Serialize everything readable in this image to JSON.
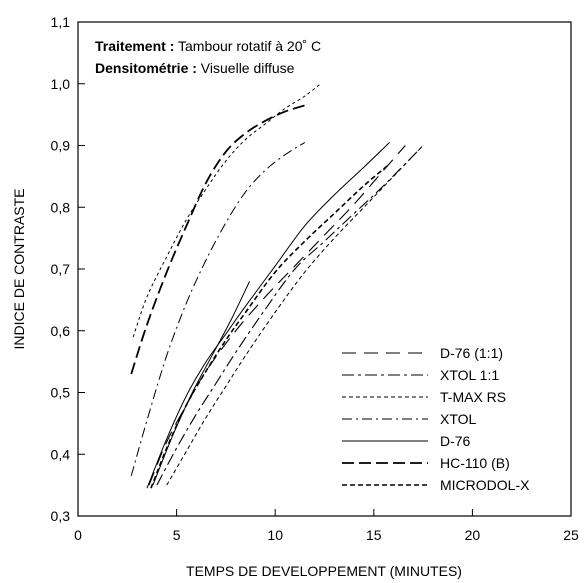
{
  "chart_data": {
    "type": "line",
    "xlabel": "TEMPS DE DEVELOPPEMENT (MINUTES)",
    "ylabel": "INDICE DE CONTRASTE",
    "xlim": [
      0,
      25
    ],
    "ylim": [
      0.3,
      1.1
    ],
    "xticks": [
      0,
      5,
      10,
      15,
      20,
      25
    ],
    "xtick_labels": [
      "0",
      "5",
      "10",
      "15",
      "20",
      "25"
    ],
    "yticks": [
      0.3,
      0.4,
      0.5,
      0.6,
      0.7,
      0.8,
      0.9,
      1.0,
      1.1
    ],
    "ytick_labels": [
      "0,3",
      "0,4",
      "0,5",
      "0,6",
      "0,7",
      "0,8",
      "0,9",
      "1,0",
      "1,1"
    ],
    "grid": false,
    "legend_position": "bottom-right",
    "annotations": [
      {
        "bold": "Traitement :",
        "text": " Tambour rotatif à 20˚ C"
      },
      {
        "bold": "Densitométrie :",
        "text": " Visuelle diffuse"
      }
    ],
    "series": [
      {
        "name": "D-76 (1:1)",
        "dash": "14,8",
        "width": 1.1,
        "x": [
          3.6,
          4.5,
          5.5,
          6.5,
          8.0,
          9.5,
          11.0,
          12.5,
          14.0,
          15.5,
          16.6
        ],
        "y": [
          0.35,
          0.42,
          0.48,
          0.535,
          0.6,
          0.655,
          0.705,
          0.755,
          0.805,
          0.86,
          0.9
        ]
      },
      {
        "name": "XTOL 1:1",
        "dash": "12,4,3,4",
        "width": 1.1,
        "x": [
          4.0,
          5.0,
          6.0,
          7.0,
          8.0,
          9.5,
          11.0,
          12.5,
          14.0,
          15.5,
          17.5
        ],
        "y": [
          0.35,
          0.41,
          0.465,
          0.515,
          0.565,
          0.635,
          0.7,
          0.745,
          0.79,
          0.835,
          0.9
        ]
      },
      {
        "name": "T-MAX RS",
        "dash": "4,3",
        "width": 1.0,
        "x": [
          4.5,
          5.5,
          6.5,
          7.5,
          8.5,
          10.0,
          11.5,
          13.0,
          14.5,
          16.0,
          17.5
        ],
        "y": [
          0.35,
          0.405,
          0.46,
          0.51,
          0.56,
          0.63,
          0.695,
          0.75,
          0.8,
          0.85,
          0.9
        ]
      },
      {
        "name": "XTOL",
        "dash": "10,4,2,4",
        "width": 1.0,
        "x": [
          2.7,
          3.5,
          4.5,
          5.5,
          6.5,
          7.5,
          8.5,
          9.5,
          10.5,
          11.5
        ],
        "y": [
          0.365,
          0.455,
          0.56,
          0.645,
          0.715,
          0.775,
          0.825,
          0.86,
          0.885,
          0.905
        ]
      },
      {
        "name": "D-76",
        "dash": "",
        "width": 1.0,
        "x": [
          3.5,
          4.5,
          5.5,
          6.5,
          7.5,
          8.5,
          10.0,
          11.5,
          13.0,
          14.5,
          15.8
        ],
        "y": [
          0.345,
          0.425,
          0.495,
          0.55,
          0.595,
          0.64,
          0.705,
          0.77,
          0.82,
          0.865,
          0.905
        ]
      },
      {
        "name": "HC-110 (B)",
        "dash": "12,5",
        "width": 1.8,
        "x": [
          2.7,
          3.5,
          4.5,
          5.5,
          6.5,
          7.5,
          8.5,
          9.5,
          10.5,
          11.5
        ],
        "y": [
          0.53,
          0.61,
          0.695,
          0.77,
          0.84,
          0.89,
          0.92,
          0.94,
          0.955,
          0.965
        ]
      },
      {
        "name": "MICRODOL-X",
        "dash": "5,3",
        "width": 1.6,
        "x": [
          3.7,
          4.5,
          5.5,
          6.5,
          7.5,
          8.5,
          10.0,
          11.5,
          13.0,
          14.5,
          15.8
        ],
        "y": [
          0.345,
          0.41,
          0.48,
          0.535,
          0.585,
          0.63,
          0.695,
          0.745,
          0.79,
          0.835,
          0.87
        ]
      },
      {
        "name": "",
        "dash": "3,3",
        "width": 1.0,
        "x": [
          2.8,
          3.5,
          4.5,
          5.5,
          6.5,
          7.5,
          8.5,
          9.5,
          10.5,
          11.5,
          12.3
        ],
        "y": [
          0.59,
          0.655,
          0.72,
          0.78,
          0.83,
          0.875,
          0.91,
          0.935,
          0.96,
          0.98,
          1.0
        ]
      },
      {
        "name": "",
        "dash": "",
        "width": 1.0,
        "x": [
          3.8,
          4.8,
          5.8,
          6.8,
          7.8,
          8.7
        ],
        "y": [
          0.35,
          0.43,
          0.5,
          0.56,
          0.62,
          0.68
        ]
      }
    ]
  }
}
